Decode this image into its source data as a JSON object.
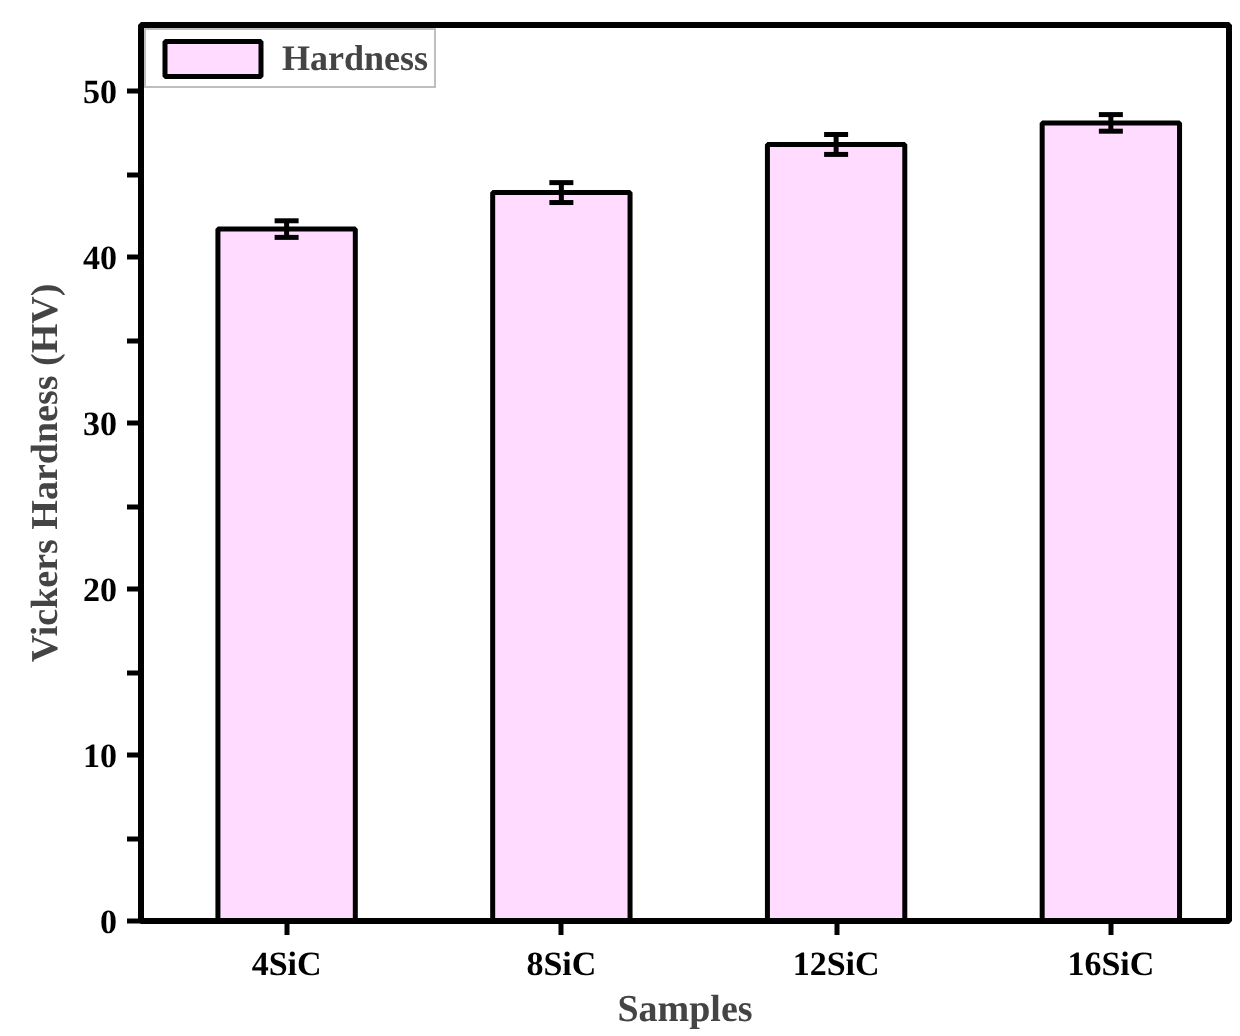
{
  "chart_data": {
    "type": "bar",
    "xlabel": "Samples",
    "ylabel": "Vickers Hardness (HV)",
    "categories": [
      "4SiC",
      "8SiC",
      "12SiC",
      "16SiC"
    ],
    "series": [
      {
        "name": "Hardness",
        "color": "#ffdcff",
        "values": [
          41.7,
          43.9,
          46.8,
          48.1
        ],
        "errors": [
          0.5,
          0.6,
          0.6,
          0.5
        ]
      }
    ],
    "ylim": [
      0,
      54
    ],
    "yticks": [
      0,
      {
        "value": 5,
        "label": null
      },
      10,
      {
        "value": 15,
        "label": null
      },
      20,
      {
        "value": 25,
        "label": null
      },
      30,
      {
        "value": 35,
        "label": null
      },
      40,
      {
        "value": 45,
        "label": null
      },
      50
    ],
    "legend": "top left",
    "grid": false
  }
}
